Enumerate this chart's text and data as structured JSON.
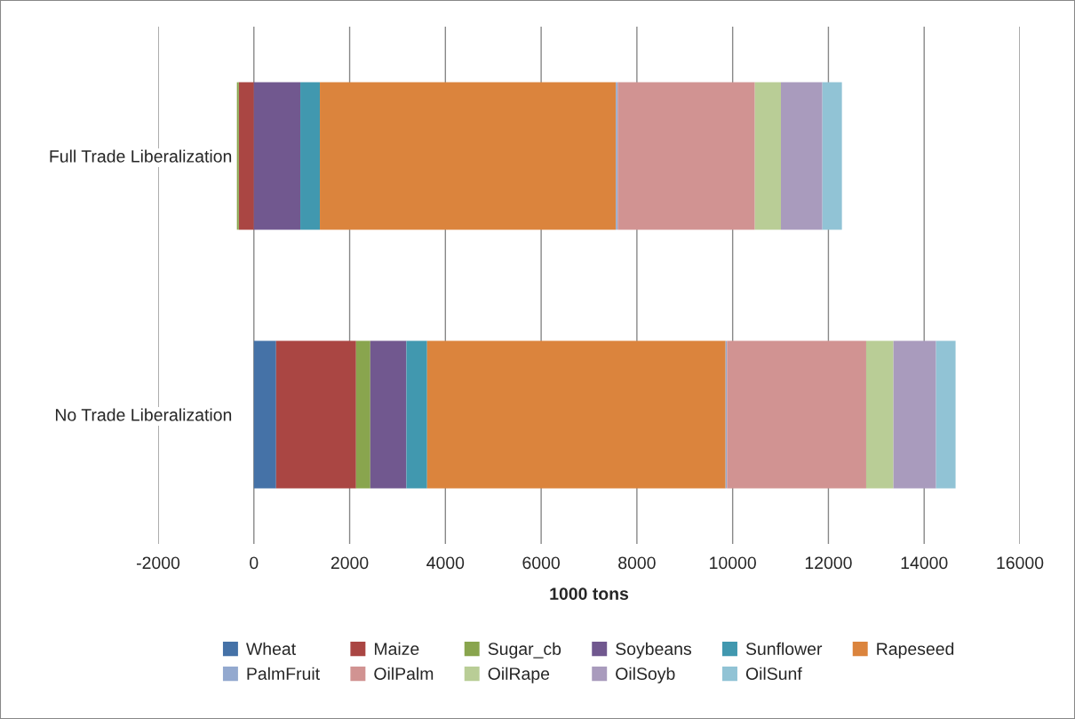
{
  "chart_data": {
    "type": "bar",
    "orientation": "horizontal",
    "stacked": true,
    "xlabel": "1000 tons",
    "categories": [
      "Full Trade Liberalization",
      "No Trade Liberalization"
    ],
    "series": [
      {
        "name": "Wheat",
        "color": "#4572a7",
        "values": [
          0,
          464
        ]
      },
      {
        "name": "Maize",
        "color": "#aa4643",
        "values": [
          -315,
          1670
        ]
      },
      {
        "name": "Sugar_cb",
        "color": "#89a54e",
        "values": [
          -40,
          297
        ]
      },
      {
        "name": "Soybeans",
        "color": "#71588f",
        "values": [
          970,
          754
        ]
      },
      {
        "name": "Sunflower",
        "color": "#4198af",
        "values": [
          408,
          433
        ]
      },
      {
        "name": "Rapeseed",
        "color": "#db843d",
        "values": [
          6184,
          6234
        ]
      },
      {
        "name": "PalmFruit",
        "color": "#93a9cf",
        "values": [
          37,
          30
        ]
      },
      {
        "name": "OilPalm",
        "color": "#d19392",
        "values": [
          2865,
          2907
        ]
      },
      {
        "name": "OilRape",
        "color": "#b9cd96",
        "values": [
          544,
          569
        ]
      },
      {
        "name": "OilSoyb",
        "color": "#a99bbd",
        "values": [
          866,
          890
        ]
      },
      {
        "name": "OilSunf",
        "color": "#91c3d5",
        "values": [
          408,
          408
        ]
      }
    ],
    "xlim": [
      -2000,
      16000
    ],
    "xticks": [
      -2000,
      0,
      2000,
      4000,
      6000,
      8000,
      10000,
      12000,
      14000,
      16000
    ],
    "grid": "x",
    "legend": "bottom"
  }
}
